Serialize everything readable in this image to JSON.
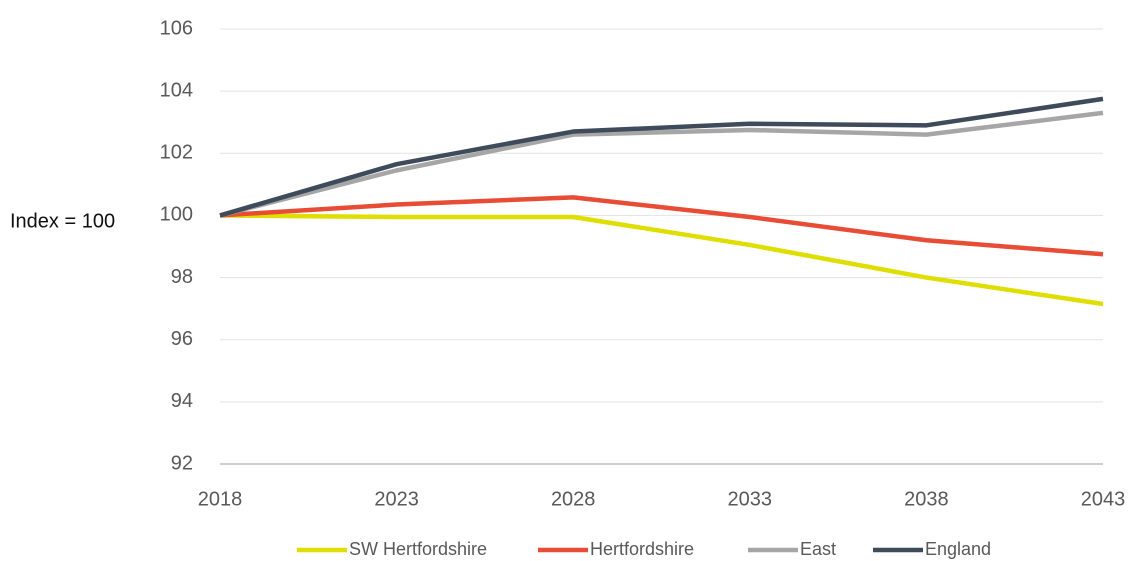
{
  "chart_data": {
    "type": "line",
    "y_axis_label": "Index = 100",
    "x": [
      2018,
      2023,
      2028,
      2033,
      2038,
      2043
    ],
    "xlim": [
      2018,
      2043
    ],
    "xticks": [
      2018,
      2023,
      2028,
      2033,
      2038,
      2043
    ],
    "ylim": [
      92,
      106
    ],
    "yticks": [
      92,
      94,
      96,
      98,
      100,
      102,
      104,
      106
    ],
    "grid": true,
    "legend": "bottom",
    "series": [
      {
        "name": "SW Hertfordshire",
        "color": "#dede00",
        "values": [
          100,
          99.95,
          99.95,
          99.05,
          98.0,
          97.15
        ]
      },
      {
        "name": "Hertfordshire",
        "color": "#e84c35",
        "values": [
          100,
          100.35,
          100.58,
          99.95,
          99.2,
          98.75
        ]
      },
      {
        "name": "East",
        "color": "#a6a6a6",
        "values": [
          100,
          101.45,
          102.6,
          102.75,
          102.6,
          103.3
        ]
      },
      {
        "name": "England",
        "color": "#3d4b5a",
        "values": [
          100,
          101.65,
          102.7,
          102.95,
          102.9,
          103.75
        ]
      }
    ]
  }
}
